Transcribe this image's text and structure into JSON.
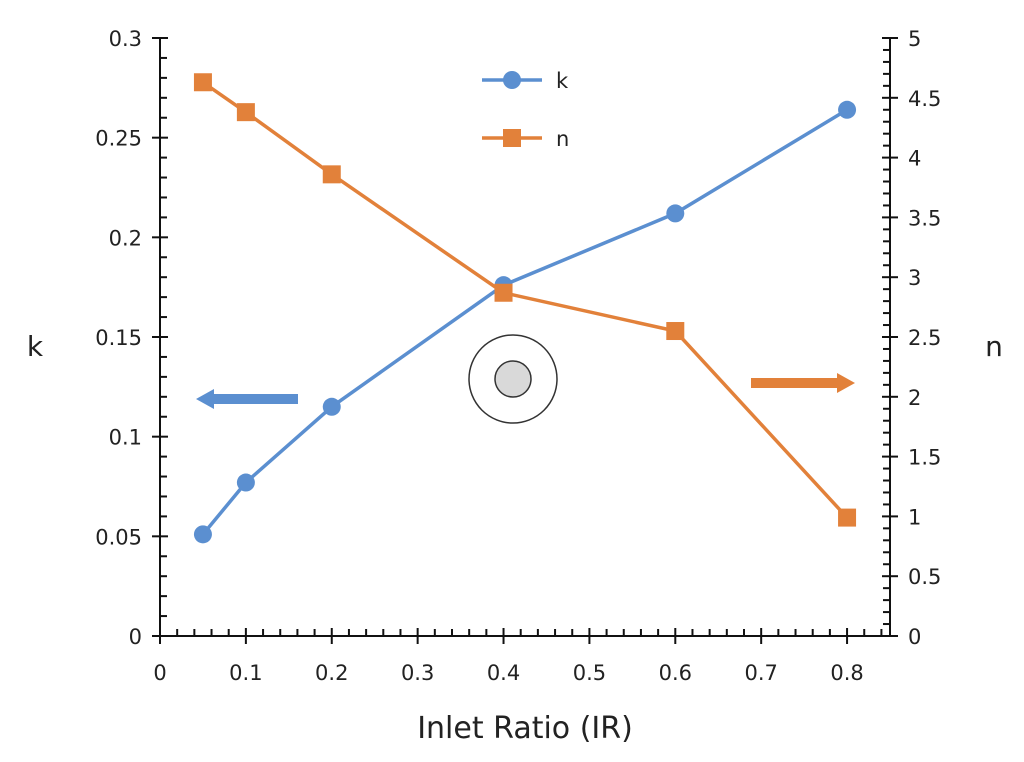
{
  "chart_data": {
    "type": "line",
    "title": "",
    "xlabel": "Inlet Ratio (IR)",
    "ylabel_left": "k",
    "ylabel_right": "n",
    "xlim": [
      0,
      0.85
    ],
    "ylim_left": [
      0,
      0.3
    ],
    "ylim_right": [
      0,
      5
    ],
    "x_ticks": [
      "0",
      "0.1",
      "0.2",
      "0.3",
      "0.4",
      "0.5",
      "0.6",
      "0.7",
      "0.8"
    ],
    "y_left_ticks": [
      "0",
      "0.05",
      "0.1",
      "0.15",
      "0.2",
      "0.25",
      "0.3"
    ],
    "y_right_ticks": [
      "0",
      "0.5",
      "1",
      "1.5",
      "2",
      "2.5",
      "3",
      "3.5",
      "4",
      "4.5",
      "5"
    ],
    "grid": false,
    "legend_position": "top-center",
    "x": [
      0.05,
      0.1,
      0.2,
      0.4,
      0.6,
      0.8
    ],
    "series": [
      {
        "name": "k",
        "axis": "left",
        "marker": "circle",
        "color": "#5b8fd0",
        "values": [
          0.051,
          0.077,
          0.115,
          0.176,
          0.212,
          0.264
        ]
      },
      {
        "name": "n",
        "axis": "right",
        "marker": "square",
        "color": "#e2813a",
        "values": [
          4.63,
          4.38,
          3.86,
          2.87,
          2.55,
          0.99
        ]
      }
    ],
    "annotations": [
      {
        "type": "arrow",
        "direction": "left",
        "points_to": "left axis",
        "color": "#5b8fd0"
      },
      {
        "type": "arrow",
        "direction": "right",
        "points_to": "right axis",
        "color": "#e2813a"
      },
      {
        "type": "inlet-symbol",
        "color": "#d9d9d9"
      }
    ]
  }
}
